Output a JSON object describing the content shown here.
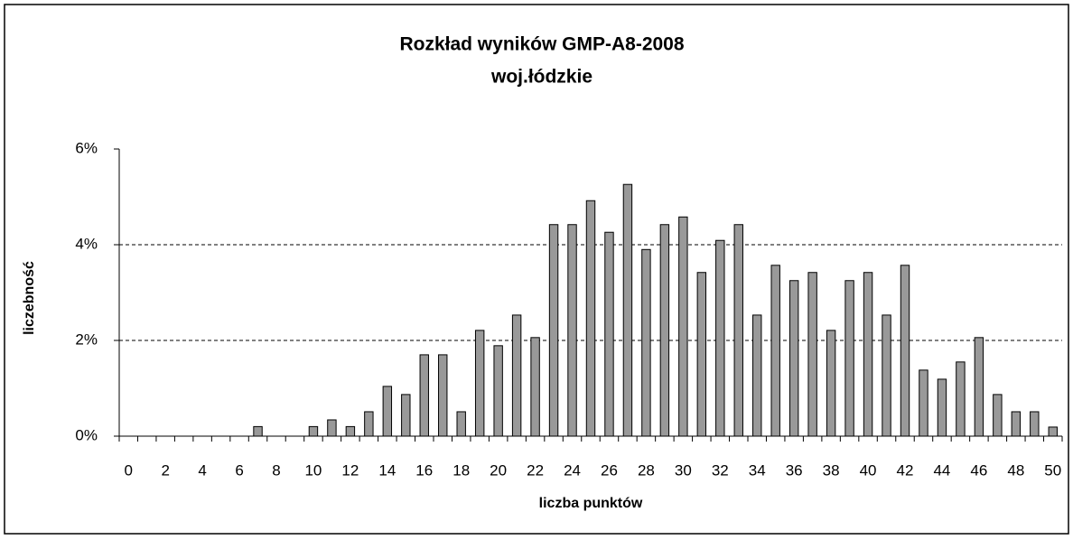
{
  "chart_data": {
    "type": "bar",
    "title": "Rozkład wyników GMP-A8-2008",
    "subtitle": "woj.łódzkie",
    "x_label": "liczba punktów",
    "y_label": "liczebność",
    "categories": [
      "0",
      null,
      "2",
      null,
      "4",
      null,
      "6",
      null,
      "8",
      null,
      "10",
      null,
      "12",
      null,
      "14",
      null,
      "16",
      null,
      "18",
      null,
      "20",
      null,
      "22",
      null,
      "24",
      null,
      "26",
      null,
      "28",
      null,
      "30",
      null,
      "32",
      null,
      "34",
      null,
      "36",
      null,
      "38",
      null,
      "40",
      null,
      "42",
      null,
      "44",
      null,
      "46",
      null,
      "48",
      null,
      "50"
    ],
    "values": [
      0,
      0,
      0,
      0,
      0,
      0,
      0,
      0.2,
      0,
      0,
      0.2,
      0.34,
      0.2,
      0.51,
      1.04,
      0.87,
      1.7,
      1.7,
      0.51,
      2.21,
      1.89,
      2.53,
      2.06,
      4.42,
      4.42,
      4.92,
      4.26,
      5.26,
      3.9,
      4.42,
      4.58,
      3.42,
      4.09,
      4.42,
      2.53,
      3.57,
      3.25,
      3.42,
      2.21,
      3.25,
      3.42,
      2.53,
      3.57,
      1.38,
      1.19,
      1.55,
      2.06,
      0.87,
      0.51,
      0.51,
      0.19
    ],
    "color": "#999999",
    "ylim": [
      0,
      6
    ],
    "yticks": [
      {
        "value": 0,
        "label": "0%"
      },
      {
        "value": 2,
        "label": "2%"
      },
      {
        "value": 4,
        "label": "4%"
      },
      {
        "value": 6,
        "label": "6%"
      }
    ],
    "grid": true
  }
}
